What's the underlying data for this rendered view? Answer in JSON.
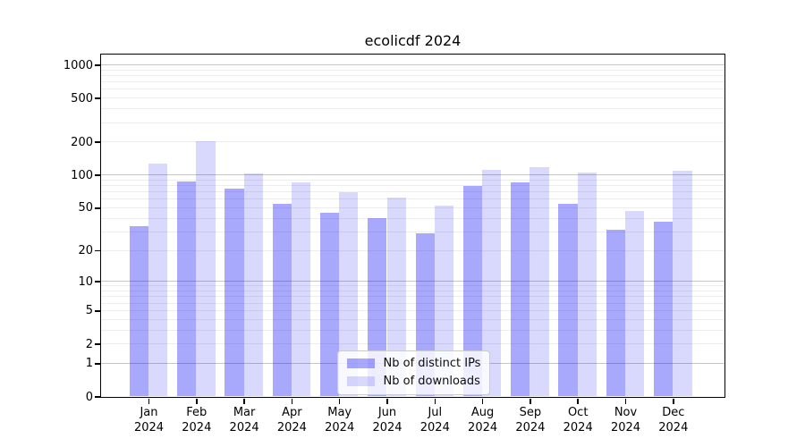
{
  "chart_data": {
    "type": "bar",
    "title": "ecolicdf 2024",
    "categories": [
      "Jan",
      "Feb",
      "Mar",
      "Apr",
      "May",
      "Jun",
      "Jul",
      "Aug",
      "Sep",
      "Oct",
      "Nov",
      "Dec"
    ],
    "x_tick_year": "2024",
    "series": [
      {
        "name": "Nb of distinct IPs",
        "color": "rgba(0,0,250,0.34)",
        "color_hex": "#a8a8f8",
        "values": [
          34,
          87,
          75,
          54,
          45,
          40,
          29,
          80,
          86,
          54,
          31,
          37
        ]
      },
      {
        "name": "Nb of downloads",
        "color": "rgba(0,0,250,0.15)",
        "color_hex": "#d8d8f8",
        "values": [
          128,
          203,
          104,
          86,
          70,
          62,
          52,
          111,
          117,
          105,
          47,
          109
        ]
      }
    ],
    "yscale": "log1p",
    "ylim": [
      0,
      1251
    ],
    "yticks": [
      0,
      1,
      2,
      5,
      10,
      20,
      50,
      100,
      200,
      500,
      1000
    ],
    "grid": {
      "on": true,
      "major": [
        1,
        10,
        100,
        1000
      ],
      "minor": [
        2,
        3,
        4,
        5,
        6,
        7,
        8,
        9,
        20,
        30,
        40,
        50,
        60,
        70,
        80,
        90,
        200,
        300,
        400,
        500,
        600,
        700,
        800,
        900
      ]
    },
    "legend": {
      "position": "lower center"
    },
    "colors": {
      "grid_major": "#c6c6c6",
      "grid_minor": "#ededed",
      "axis": "#000000",
      "text": "#000000",
      "legend_border": "#cbcbcb"
    }
  }
}
